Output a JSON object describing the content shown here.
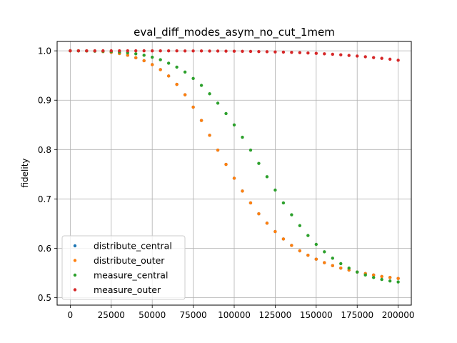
{
  "chart_data": {
    "type": "scatter",
    "title": "eval_diff_modes_asym_no_cut_1mem",
    "xlabel": "",
    "ylabel": "fidelity",
    "xlim": [
      -8000,
      208000
    ],
    "ylim": [
      0.485,
      1.019
    ],
    "grid": true,
    "legend_position": "lower left",
    "x_ticks": [
      0,
      25000,
      50000,
      75000,
      100000,
      125000,
      150000,
      175000,
      200000
    ],
    "x_tick_labels": [
      "0",
      "25000",
      "50000",
      "75000",
      "100000",
      "125000",
      "150000",
      "175000",
      "200000"
    ],
    "y_ticks": [
      0.5,
      0.6,
      0.7,
      0.8,
      0.9,
      1.0
    ],
    "y_tick_labels": [
      "0.5",
      "0.6",
      "0.7",
      "0.8",
      "0.9",
      "1.0"
    ],
    "x": [
      0,
      5000,
      10000,
      15000,
      20000,
      25000,
      30000,
      35000,
      40000,
      45000,
      50000,
      55000,
      60000,
      65000,
      70000,
      75000,
      80000,
      85000,
      90000,
      95000,
      100000,
      105000,
      110000,
      115000,
      120000,
      125000,
      130000,
      135000,
      140000,
      145000,
      150000,
      155000,
      160000,
      165000,
      170000,
      175000,
      180000,
      185000,
      190000,
      195000,
      200000
    ],
    "series": [
      {
        "name": "distribute_central",
        "color": "#1f77b4",
        "values": [
          1.0,
          0.9999,
          0.9997,
          0.9993,
          0.9985,
          0.997,
          0.9945,
          0.991,
          0.986,
          0.98,
          0.972,
          0.962,
          0.949,
          0.932,
          0.911,
          0.886,
          0.859,
          0.829,
          0.799,
          0.77,
          0.742,
          0.716,
          0.692,
          0.67,
          0.651,
          0.634,
          0.619,
          0.606,
          0.595,
          0.586,
          0.578,
          0.571,
          0.565,
          0.56,
          0.556,
          0.552,
          0.549,
          0.546,
          0.543,
          0.541,
          0.539
        ]
      },
      {
        "name": "distribute_outer",
        "color": "#ff7f0e",
        "values": [
          1.0,
          0.9999,
          0.9997,
          0.9993,
          0.9985,
          0.997,
          0.9945,
          0.991,
          0.986,
          0.98,
          0.972,
          0.962,
          0.949,
          0.932,
          0.911,
          0.886,
          0.859,
          0.829,
          0.799,
          0.77,
          0.742,
          0.716,
          0.692,
          0.67,
          0.651,
          0.634,
          0.619,
          0.606,
          0.595,
          0.586,
          0.578,
          0.571,
          0.565,
          0.56,
          0.556,
          0.552,
          0.549,
          0.546,
          0.543,
          0.541,
          0.539
        ]
      },
      {
        "name": "measure_central",
        "color": "#2ca02c",
        "values": [
          1.0,
          0.9999,
          0.9998,
          0.9996,
          0.9992,
          0.9985,
          0.9975,
          0.996,
          0.994,
          0.991,
          0.987,
          0.982,
          0.975,
          0.967,
          0.957,
          0.944,
          0.93,
          0.913,
          0.894,
          0.873,
          0.85,
          0.825,
          0.799,
          0.772,
          0.745,
          0.718,
          0.692,
          0.668,
          0.646,
          0.626,
          0.608,
          0.593,
          0.58,
          0.569,
          0.56,
          0.552,
          0.546,
          0.541,
          0.537,
          0.534,
          0.532
        ]
      },
      {
        "name": "measure_outer",
        "color": "#d62728",
        "values": [
          1.0,
          1.0,
          1.0,
          1.0,
          1.0,
          1.0,
          1.0,
          1.0,
          1.0,
          1.0,
          0.9999,
          0.9999,
          0.9999,
          0.9999,
          0.9998,
          0.9998,
          0.9997,
          0.9996,
          0.9995,
          0.9994,
          0.9992,
          0.999,
          0.9988,
          0.9985,
          0.9982,
          0.9978,
          0.9974,
          0.9969,
          0.9963,
          0.9956,
          0.9948,
          0.994,
          0.993,
          0.9919,
          0.9907,
          0.9894,
          0.988,
          0.9864,
          0.9848,
          0.983,
          0.981
        ]
      }
    ]
  }
}
